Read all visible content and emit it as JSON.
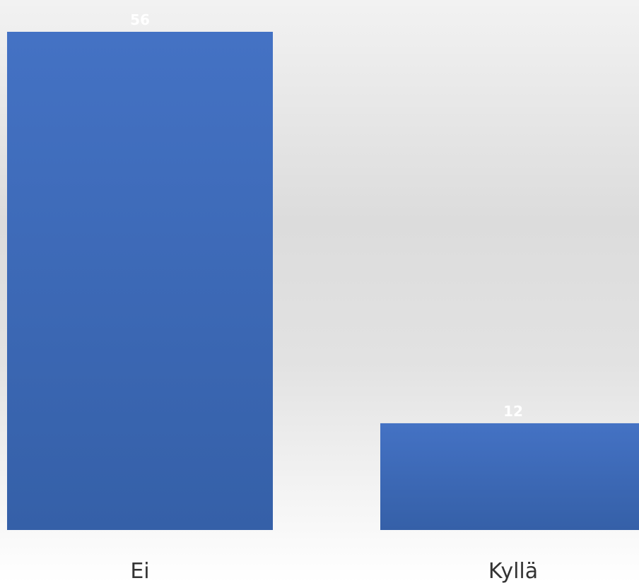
{
  "chart_data": {
    "type": "bar",
    "categories": [
      "Ei",
      "Kyllä"
    ],
    "values": [
      56,
      12
    ],
    "title": "",
    "xlabel": "",
    "ylabel": "",
    "ylim": [
      0,
      56
    ],
    "grid": false,
    "legend": "none",
    "data_labels": true,
    "bar_color": "#4472c4",
    "bar_color_dark": "#3560a8",
    "label_color": "#ffffff",
    "category_label_color": "#333333"
  }
}
